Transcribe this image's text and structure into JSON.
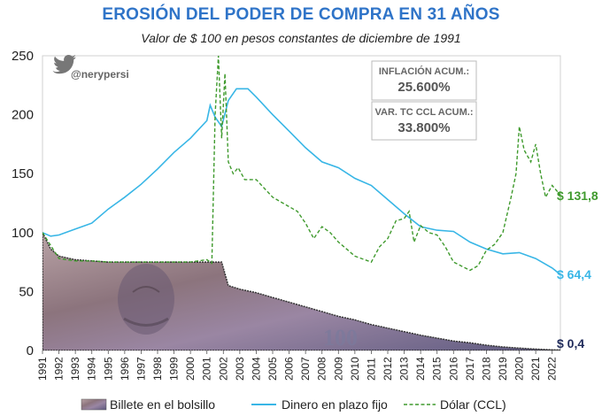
{
  "title": "EROSIÓN DEL PODER DE COMPRA EN 31 AÑOS",
  "subtitle": "Valor de $ 100 en pesos constantes de diciembre de 1991",
  "handle": "@nerypersi",
  "boxes": [
    {
      "label": "INFLACIÓN ACUM.:",
      "value": "25.600%"
    },
    {
      "label": "VAR. TC CCL ACUM.:",
      "value": "33.800%"
    }
  ],
  "end_labels": {
    "dolar": "$ 131,8",
    "plazo": "$ 64,4",
    "billete": "$ 0,4"
  },
  "colors": {
    "dolar": "#3f9a2d",
    "plazo": "#38b6e6",
    "billete": "#1f2a5a",
    "title": "#2f74c8",
    "billete_fill": "#8a7278"
  },
  "chart_data": {
    "type": "line",
    "title": "EROSIÓN DEL PODER DE COMPRA EN 31 AÑOS",
    "subtitle": "Valor de $ 100 en pesos constantes de diciembre de 1991",
    "ylim": [
      0,
      250
    ],
    "yticks": [
      0,
      50,
      100,
      150,
      200,
      250
    ],
    "xlim": [
      1991,
      2022.5
    ],
    "xticks": [
      "1991",
      "1992",
      "1993",
      "1994",
      "1995",
      "1996",
      "1997",
      "1998",
      "1999",
      "2000",
      "2001",
      "2002",
      "2003",
      "2004",
      "2005",
      "2006",
      "2007",
      "2008",
      "2009",
      "2010",
      "2011",
      "2012",
      "2013",
      "2014",
      "2015",
      "2016",
      "2017",
      "2018",
      "2019",
      "2020",
      "2021",
      "2022"
    ],
    "grid": false,
    "legend_position": "bottom",
    "series": [
      {
        "name": "Billete en el bolsillo",
        "style": "area",
        "x": [
          1991,
          1991.5,
          1992,
          1993,
          1994,
          1995,
          1996,
          1997,
          1998,
          1999,
          2000,
          2001,
          2001.9,
          2002.3,
          2003,
          2004,
          2005,
          2006,
          2007,
          2008,
          2009,
          2010,
          2011,
          2012,
          2013,
          2014,
          2015,
          2016,
          2017,
          2018,
          2019,
          2020,
          2021,
          2022,
          2022.5
        ],
        "y": [
          100,
          86,
          80,
          77,
          76,
          75,
          75,
          75,
          75,
          75,
          75,
          75,
          75,
          55,
          52,
          49,
          45,
          41,
          37,
          33,
          29,
          26,
          22,
          19,
          16,
          13,
          10.5,
          8,
          6.5,
          4.5,
          3,
          2,
          1.2,
          0.6,
          0.4
        ]
      },
      {
        "name": "Dinero en plazo fijo",
        "x": [
          1991,
          1991.5,
          1992,
          1993,
          1994,
          1995,
          1996,
          1997,
          1998,
          1999,
          2000,
          2001,
          2001.2,
          2001.5,
          2001.9,
          2002.3,
          2002.8,
          2003.5,
          2004,
          2005,
          2006,
          2007,
          2008,
          2009,
          2010,
          2011,
          2012,
          2013,
          2014,
          2015,
          2016,
          2017,
          2018,
          2019,
          2020,
          2021,
          2022,
          2022.5
        ],
        "y": [
          100,
          97,
          98,
          103,
          108,
          120,
          130,
          141,
          154,
          168,
          180,
          195,
          208,
          198,
          190,
          212,
          222,
          222,
          215,
          200,
          186,
          172,
          160,
          155,
          146,
          140,
          128,
          116,
          105,
          102,
          101,
          92,
          86,
          82,
          83,
          78,
          70,
          64.4
        ]
      },
      {
        "name": "Dólar (CCL)",
        "style": "dashed",
        "x": [
          1991,
          1992,
          1993,
          1994,
          1995,
          1996,
          1997,
          1998,
          1999,
          2000,
          2001,
          2001.3,
          2001.5,
          2001.7,
          2001.9,
          2002.1,
          2002.3,
          2002.6,
          2002.9,
          2003.3,
          2004,
          2005,
          2006,
          2006.5,
          2007,
          2007.5,
          2008,
          2008.5,
          2009,
          2010,
          2011,
          2011.5,
          2012,
          2012.5,
          2013,
          2013.3,
          2013.6,
          2014,
          2014.5,
          2015,
          2015.5,
          2016,
          2017,
          2017.5,
          2018,
          2018.5,
          2019,
          2019.5,
          2019.8,
          2020,
          2020.3,
          2020.7,
          2021,
          2021.3,
          2021.6,
          2022,
          2022.5
        ],
        "y": [
          100,
          78,
          76,
          76,
          75,
          75,
          75,
          75,
          75,
          75,
          77,
          74,
          200,
          250,
          180,
          235,
          160,
          150,
          155,
          145,
          145,
          130,
          122,
          118,
          108,
          95,
          105,
          100,
          92,
          80,
          75,
          88,
          95,
          110,
          112,
          118,
          92,
          106,
          100,
          98,
          88,
          75,
          68,
          72,
          85,
          90,
          100,
          130,
          150,
          190,
          170,
          160,
          175,
          150,
          130,
          140,
          131.8
        ]
      }
    ],
    "annotations": [
      "INFLACIÓN ACUM.: 25.600%",
      "VAR. TC CCL ACUM.: 33.800%",
      "$ 131,8",
      "$ 64,4",
      "$ 0,4"
    ]
  }
}
